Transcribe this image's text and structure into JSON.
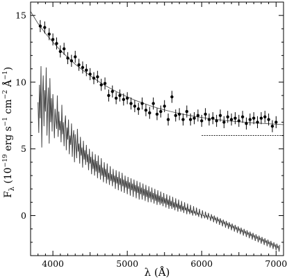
{
  "chart_data": {
    "type": "scatter",
    "xlabel": "λ (Å)",
    "ylabel": {
      "pre": "F",
      "sub": "λ",
      "paren_open": " (10",
      "exp1": "−19",
      "mid1": " erg s",
      "exp2": "−1",
      "mid2": " cm",
      "exp3": "−2",
      "mid3": " Å",
      "exp4": "−1",
      "paren_close": ")"
    },
    "xlim": [
      3700,
      7100
    ],
    "ylim": [
      -3,
      16
    ],
    "xticks": [
      4000,
      5000,
      6000,
      7000
    ],
    "yticks": [
      0,
      5,
      10,
      15
    ],
    "grid": false,
    "legend": "none",
    "series": [
      {
        "kind": "points_with_errorbars",
        "x": [
          3830,
          3890,
          3950,
          4000,
          4050,
          4100,
          4150,
          4200,
          4250,
          4300,
          4350,
          4400,
          4450,
          4500,
          4550,
          4600,
          4650,
          4700,
          4750,
          4800,
          4850,
          4900,
          4950,
          5000,
          5050,
          5100,
          5150,
          5200,
          5250,
          5300,
          5350,
          5400,
          5450,
          5500,
          5550,
          5600,
          5650,
          5700,
          5750,
          5800,
          5850,
          5900,
          5950,
          6000,
          6050,
          6100,
          6150,
          6200,
          6250,
          6300,
          6350,
          6400,
          6450,
          6500,
          6550,
          6600,
          6650,
          6700,
          6750,
          6800,
          6850,
          6900,
          6950,
          7000
        ],
        "y": [
          14.2,
          14.1,
          13.6,
          13.2,
          12.9,
          12.3,
          12.5,
          11.8,
          11.6,
          11.9,
          11.3,
          11.1,
          10.9,
          10.6,
          10.3,
          10.4,
          9.8,
          9.9,
          9.0,
          9.3,
          8.8,
          9.0,
          8.7,
          8.8,
          8.4,
          8.2,
          8.0,
          8.4,
          7.9,
          7.7,
          8.4,
          7.6,
          7.8,
          8.2,
          7.2,
          8.9,
          7.5,
          7.6,
          7.2,
          7.8,
          7.2,
          7.3,
          7.5,
          7.1,
          7.6,
          7.2,
          7.3,
          7.1,
          7.5,
          7.0,
          7.4,
          7.2,
          7.3,
          7.1,
          7.4,
          6.9,
          7.2,
          7.3,
          7.0,
          7.3,
          7.4,
          7.2,
          6.7,
          7.0
        ],
        "yerr": 0.45
      },
      {
        "kind": "fitted_curve",
        "x": [
          3700,
          3800,
          3900,
          4000,
          4100,
          4200,
          4300,
          4400,
          4500,
          4600,
          4700,
          4800,
          4900,
          5000,
          5100,
          5200,
          5300,
          5400,
          5500,
          5600,
          5700,
          5800,
          5900,
          6000,
          6100,
          6200,
          6300,
          6400,
          6500,
          6600,
          6700,
          6800,
          6900,
          7000,
          7100
        ],
        "y": [
          15.3,
          14.4,
          13.65,
          13.0,
          12.4,
          11.85,
          11.35,
          10.9,
          10.5,
          10.1,
          9.75,
          9.45,
          9.15,
          8.9,
          8.65,
          8.45,
          8.25,
          8.07,
          7.92,
          7.78,
          7.65,
          7.54,
          7.44,
          7.35,
          7.27,
          7.2,
          7.14,
          7.08,
          7.03,
          6.99,
          6.95,
          6.91,
          6.88,
          6.85,
          6.82
        ]
      },
      {
        "kind": "spectrum",
        "x_start": 3800,
        "x_step": 10,
        "y": [
          8.5,
          6.2,
          9.8,
          7.3,
          11.2,
          5.1,
          8.9,
          10.5,
          6.7,
          9.4,
          7.8,
          11.1,
          6.0,
          8.2,
          9.6,
          5.4,
          10.3,
          7.0,
          8.8,
          6.3,
          9.1,
          7.6,
          5.8,
          8.0,
          7.2,
          6.5,
          9.0,
          5.9,
          7.8,
          6.4,
          7.1,
          5.5,
          8.3,
          6.1,
          7.0,
          5.2,
          6.8,
          7.5,
          4.9,
          6.6,
          5.7,
          7.2,
          4.6,
          6.0,
          5.3,
          6.9,
          4.4,
          5.8,
          6.4,
          4.0,
          6.1,
          5.2,
          4.3,
          6.5,
          4.8,
          5.4,
          3.9,
          5.9,
          4.5,
          5.1,
          3.6,
          5.6,
          4.2,
          4.9,
          3.8,
          5.3,
          4.0,
          4.6,
          3.4,
          5.0,
          3.9,
          4.4,
          3.1,
          4.8,
          3.5,
          4.2,
          3.0,
          4.6,
          3.3,
          4.1,
          2.8,
          4.5,
          3.2,
          3.8,
          2.7,
          4.3,
          3.0,
          3.6,
          2.5,
          4.0,
          2.9,
          3.5,
          2.4,
          3.9,
          2.7,
          3.2,
          2.3,
          3.7,
          2.6,
          3.1,
          2.2,
          3.5,
          2.5,
          3.0,
          2.0,
          3.4,
          2.4,
          2.9,
          1.9,
          3.3,
          2.3,
          2.8,
          1.8,
          3.2,
          2.2,
          2.7,
          1.7,
          3.0,
          2.1,
          2.6,
          1.6,
          2.9,
          2.0,
          2.5,
          1.5,
          2.8,
          1.9,
          2.4,
          1.4,
          2.7,
          1.8,
          2.3,
          1.3,
          2.6,
          1.7,
          2.2,
          1.2,
          2.5,
          1.6,
          2.1,
          1.2,
          2.4,
          1.5,
          2.0,
          1.1,
          2.3,
          1.4,
          1.9,
          1.0,
          2.2,
          1.3,
          1.8,
          1.0,
          2.1,
          1.2,
          1.7,
          0.9,
          2.0,
          1.1,
          1.6,
          0.8,
          1.9,
          1.0,
          1.5,
          0.8,
          1.8,
          0.9,
          1.4,
          0.7,
          1.7,
          0.9,
          1.3,
          0.6,
          1.6,
          0.8,
          1.2,
          0.5,
          1.5,
          0.7,
          1.1,
          0.5,
          1.4,
          0.6,
          1.0,
          0.4,
          1.3,
          0.6,
          0.9,
          0.3,
          1.2,
          0.5,
          0.8,
          0.3,
          1.1,
          0.4,
          0.7,
          0.2,
          1.0,
          0.4,
          0.6,
          0.1,
          0.9,
          0.3,
          0.5,
          0.1,
          0.8,
          0.2,
          0.4,
          0.0,
          0.7,
          0.2,
          0.3,
          0.0,
          0.6,
          0.1,
          0.2,
          -0.1,
          0.5,
          0.1,
          0.1,
          -0.2,
          0.4,
          0.0,
          0.0,
          -0.2,
          0.3,
          -0.1,
          0.0,
          -0.3,
          0.2,
          -0.1,
          -0.1,
          -0.4,
          0.1,
          -0.2,
          -0.1,
          -0.5,
          0.0,
          -0.3,
          -0.2,
          -0.6,
          -0.1,
          -0.4,
          -0.3,
          -0.7,
          -0.2,
          -0.5,
          -0.4,
          -0.8,
          -0.3,
          -0.6,
          -0.5,
          -0.9,
          -0.4,
          -0.7,
          -0.6,
          -1.0,
          -0.5,
          -0.8,
          -0.7,
          -1.1,
          -0.6,
          -0.9,
          -0.8,
          -1.2,
          -0.7,
          -1.0,
          -0.9,
          -1.3,
          -0.8,
          -1.1,
          -1.0,
          -1.4,
          -0.9,
          -1.2,
          -1.1,
          -1.5,
          -1.0,
          -1.3,
          -1.2,
          -1.6,
          -1.1,
          -1.4,
          -1.3,
          -1.7,
          -1.2,
          -1.5,
          -1.4,
          -1.8,
          -1.3,
          -1.6,
          -1.5,
          -1.9,
          -1.4,
          -1.7,
          -1.6,
          -2.0,
          -1.5,
          -1.8,
          -1.7,
          -2.1,
          -1.6,
          -1.9,
          -1.8,
          -2.2,
          -1.7,
          -2.0,
          -1.9,
          -2.3,
          -1.8,
          -2.1,
          -2.0,
          -2.4,
          -1.9,
          -2.2,
          -2.1,
          -2.5,
          -2.0,
          -2.3,
          -2.2,
          -2.6,
          -2.1,
          -2.4,
          -2.3,
          -2.7,
          -2.2
        ]
      },
      {
        "kind": "reference_line",
        "x": [
          6000,
          7100
        ],
        "y": 6.0,
        "style": "dotted"
      }
    ],
    "colors": {
      "points": "#000000",
      "fit": "#555555",
      "spectrum": "#444444",
      "reference": "#000000"
    }
  }
}
